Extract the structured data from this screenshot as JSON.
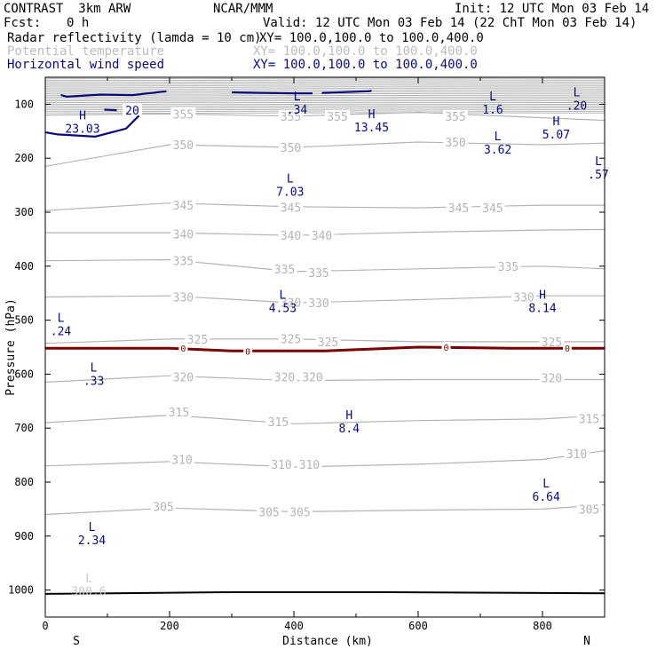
{
  "header": {
    "model": "CONTRAST  3km ARW",
    "org": "NCAR/MMM",
    "init": "Init: 12 UTC Mon 03 Feb 14",
    "fcst_label": "Fcst:",
    "fcst_value": "0 h",
    "valid": "Valid: 12 UTC Mon 03 Feb 14 (22 ChT Mon 03 Feb 14)",
    "fields": [
      {
        "name": "Radar reflectivity (lamda = 10 cm)",
        "xy": "XY= 100.0,100.0 to 100.0,400.0",
        "color": "#000000"
      },
      {
        "name": "Potential temperature",
        "xy": "XY= 100.0,100.0 to 100.0,400.0",
        "color": "#bcbcbc"
      },
      {
        "name": "Horizontal wind speed",
        "xy": "XY= 100.0,100.0 to 100.0,400.0",
        "color": "#0a0a78"
      }
    ]
  },
  "colors": {
    "theta": "#b4b4b4",
    "wind": "#0a0a78",
    "reflectivity": "#7a0000",
    "frame": "#000000"
  },
  "chart_data": {
    "type": "cross-section contour",
    "xlabel": "Distance (km)",
    "ylabel": "Pressure (hPa)",
    "xlim": [
      0,
      900
    ],
    "ylim": [
      1050,
      50
    ],
    "x_ticks": [
      0,
      200,
      400,
      600,
      800
    ],
    "y_ticks": [
      100,
      200,
      300,
      400,
      500,
      600,
      700,
      800,
      900,
      1000
    ],
    "end_labels": {
      "left": "S",
      "right": "N"
    },
    "theta_contours": [
      {
        "level": 305,
        "points": [
          [
            0,
            860
          ],
          [
            200,
            848
          ],
          [
            400,
            855
          ],
          [
            600,
            852
          ],
          [
            800,
            850
          ],
          [
            900,
            842
          ]
        ],
        "labels": [
          [
            190,
            845
          ],
          [
            360,
            855
          ],
          [
            410,
            855
          ],
          [
            875,
            850
          ]
        ]
      },
      {
        "level": 310,
        "points": [
          [
            0,
            770
          ],
          [
            200,
            762
          ],
          [
            400,
            772
          ],
          [
            600,
            767
          ],
          [
            800,
            758
          ],
          [
            900,
            742
          ]
        ],
        "labels": [
          [
            220,
            758
          ],
          [
            380,
            767
          ],
          [
            425,
            767
          ],
          [
            855,
            747
          ]
        ]
      },
      {
        "level": 315,
        "points": [
          [
            0,
            690
          ],
          [
            200,
            676
          ],
          [
            400,
            692
          ],
          [
            600,
            686
          ],
          [
            800,
            683
          ],
          [
            900,
            676
          ]
        ],
        "labels": [
          [
            215,
            670
          ],
          [
            375,
            688
          ],
          [
            875,
            682
          ]
        ]
      },
      {
        "level": 320,
        "points": [
          [
            0,
            615
          ],
          [
            200,
            603
          ],
          [
            400,
            612
          ],
          [
            600,
            610
          ],
          [
            800,
            610
          ],
          [
            900,
            610
          ]
        ],
        "labels": [
          [
            222,
            605
          ],
          [
            385,
            605
          ],
          [
            430,
            605
          ],
          [
            815,
            607
          ]
        ]
      },
      {
        "level": 325,
        "points": [
          [
            0,
            543
          ],
          [
            200,
            535
          ],
          [
            400,
            535
          ],
          [
            600,
            540
          ],
          [
            800,
            540
          ],
          [
            900,
            540
          ]
        ],
        "labels": [
          [
            245,
            535
          ],
          [
            395,
            534
          ],
          [
            455,
            540
          ],
          [
            815,
            540
          ]
        ]
      },
      {
        "level": 330,
        "points": [
          [
            0,
            457
          ],
          [
            200,
            455
          ],
          [
            400,
            468
          ],
          [
            600,
            462
          ],
          [
            800,
            455
          ],
          [
            900,
            455
          ]
        ],
        "labels": [
          [
            222,
            457
          ],
          [
            395,
            467
          ],
          [
            440,
            468
          ],
          [
            770,
            457
          ]
        ]
      },
      {
        "level": 335,
        "points": [
          [
            0,
            390
          ],
          [
            200,
            388
          ],
          [
            400,
            410
          ],
          [
            600,
            405
          ],
          [
            800,
            400
          ],
          [
            900,
            405
          ]
        ],
        "labels": [
          [
            222,
            390
          ],
          [
            385,
            405
          ],
          [
            440,
            412
          ],
          [
            745,
            400
          ]
        ]
      },
      {
        "level": 340,
        "points": [
          [
            0,
            338
          ],
          [
            200,
            338
          ],
          [
            400,
            343
          ],
          [
            600,
            337
          ],
          [
            800,
            333
          ],
          [
            900,
            332
          ]
        ],
        "labels": [
          [
            222,
            340
          ],
          [
            395,
            343
          ],
          [
            445,
            343
          ]
        ]
      },
      {
        "level": 345,
        "points": [
          [
            0,
            297
          ],
          [
            200,
            283
          ],
          [
            400,
            290
          ],
          [
            600,
            292
          ],
          [
            800,
            287
          ],
          [
            900,
            287
          ]
        ],
        "labels": [
          [
            222,
            287
          ],
          [
            395,
            291
          ],
          [
            665,
            292
          ],
          [
            720,
            292
          ]
        ]
      },
      {
        "level": 350,
        "points": [
          [
            0,
            215
          ],
          [
            200,
            175
          ],
          [
            400,
            180
          ],
          [
            600,
            170
          ],
          [
            800,
            175
          ],
          [
            900,
            172
          ]
        ],
        "labels": [
          [
            222,
            175
          ],
          [
            395,
            180
          ],
          [
            660,
            170
          ]
        ]
      },
      {
        "level": 355,
        "points": [
          [
            0,
            120
          ],
          [
            200,
            118
          ],
          [
            400,
            122
          ],
          [
            600,
            115
          ],
          [
            800,
            125
          ],
          [
            900,
            130
          ]
        ],
        "labels": [
          [
            222,
            118
          ],
          [
            395,
            122
          ],
          [
            470,
            122
          ],
          [
            660,
            122
          ]
        ]
      }
    ],
    "reflectivity_contour": {
      "level": 0,
      "points": [
        [
          0,
          552
        ],
        [
          200,
          552
        ],
        [
          300,
          557
        ],
        [
          450,
          557
        ],
        [
          600,
          550
        ],
        [
          750,
          552
        ],
        [
          900,
          552
        ]
      ],
      "labels": [
        [
          222,
          552
        ],
        [
          326,
          557
        ],
        [
          645,
          550
        ],
        [
          840,
          552
        ]
      ]
    },
    "surface_line": {
      "points": [
        [
          0,
          1007
        ],
        [
          300,
          1004
        ],
        [
          550,
          1004
        ],
        [
          900,
          1006
        ]
      ]
    },
    "extrema": [
      {
        "type": "L",
        "value": ".34",
        "x": 405,
        "y": 98
      },
      {
        "type": "L",
        "value": "1.6",
        "x": 720,
        "y": 98
      },
      {
        "type": "L",
        "value": ".20",
        "x": 855,
        "y": 90
      },
      {
        "type": "H",
        "value": "23.03",
        "x": 60,
        "y": 133
      },
      {
        "type": "H",
        "value": "13.45",
        "x": 525,
        "y": 131
      },
      {
        "type": "H",
        "value": "5.07",
        "x": 822,
        "y": 144
      },
      {
        "type": "L",
        "value": "3.62",
        "x": 728,
        "y": 172
      },
      {
        "type": "L",
        "value": ".57",
        "x": 890,
        "y": 218
      },
      {
        "type": "L",
        "value": "7.03",
        "x": 394,
        "y": 250
      },
      {
        "type": "L",
        "value": "4.53",
        "x": 382,
        "y": 465
      },
      {
        "type": "H",
        "value": "8.14",
        "x": 800,
        "y": 465
      },
      {
        "type": "L",
        "value": ".24",
        "x": 25,
        "y": 508
      },
      {
        "type": "L",
        "value": ".33",
        "x": 78,
        "y": 600
      },
      {
        "type": "H",
        "value": "8.4",
        "x": 489,
        "y": 688
      },
      {
        "type": "L",
        "value": "6.64",
        "x": 806,
        "y": 815
      },
      {
        "type": "L",
        "value": "2.34",
        "x": 75,
        "y": 895
      },
      {
        "type": "L",
        "value": "300.6",
        "x": 70,
        "y": 990
      }
    ],
    "wind_contours": [
      {
        "level": 20,
        "points": [
          [
            195,
            76
          ],
          [
            140,
            83
          ],
          [
            90,
            82
          ],
          [
            35,
            86
          ],
          [
            25,
            83
          ]
        ],
        "labels": []
      },
      {
        "level": 20,
        "points": [
          [
            300,
            78
          ],
          [
            400,
            80
          ],
          [
            430,
            80
          ]
        ],
        "labels": []
      },
      {
        "level": 20,
        "points": [
          [
            445,
            79
          ],
          [
            520,
            76
          ],
          [
            525,
            75
          ]
        ],
        "labels": []
      },
      {
        "level": 20,
        "points": [
          [
            95,
            110
          ],
          [
            115,
            111
          ]
        ],
        "labels": []
      },
      {
        "level": 20,
        "points": [
          [
            130,
            110
          ],
          [
            150,
            115
          ],
          [
            150,
            122
          ],
          [
            130,
            145
          ],
          [
            80,
            160
          ],
          [
            20,
            156
          ],
          [
            0,
            152
          ]
        ],
        "labels": [
          [
            140,
            111
          ]
        ]
      }
    ],
    "wind_label": "20"
  }
}
